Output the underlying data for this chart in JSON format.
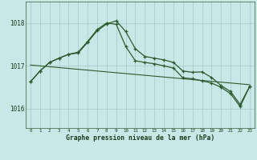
{
  "title": "Graphe pression niveau de la mer (hPa)",
  "bg_color": "#c8e8e8",
  "grid_color": "#a8cccc",
  "line_color": "#2d5a2d",
  "ylim": [
    1015.55,
    1018.5
  ],
  "yticks": [
    1016,
    1017,
    1018
  ],
  "line1": [
    1016.63,
    1016.88,
    1017.08,
    1017.18,
    1017.27,
    1017.3,
    1017.55,
    1017.82,
    1017.98,
    1018.05,
    1017.8,
    1017.4,
    1017.22,
    1017.18,
    1017.14,
    1017.08,
    1016.88,
    1016.85,
    1016.86,
    1016.73,
    1016.54,
    1016.4,
    1016.1,
    1016.52
  ],
  "line2": [
    1016.63,
    1016.88,
    1017.08,
    1017.18,
    1017.27,
    1017.32,
    1017.57,
    1017.85,
    1018.0,
    1017.97,
    1017.45,
    1017.12,
    1017.08,
    1017.05,
    1017.0,
    1016.95,
    1016.72,
    1016.7,
    1016.65,
    1016.6,
    1016.5,
    1016.35,
    1016.05,
    1016.52
  ],
  "line3": [
    1017.02,
    1017.0,
    1016.98,
    1016.96,
    1016.94,
    1016.92,
    1016.9,
    1016.88,
    1016.86,
    1016.84,
    1016.82,
    1016.8,
    1016.78,
    1016.76,
    1016.74,
    1016.72,
    1016.7,
    1016.68,
    1016.66,
    1016.64,
    1016.62,
    1016.6,
    1016.58,
    1016.56
  ],
  "x_labels": [
    "0",
    "1",
    "2",
    "3",
    "4",
    "5",
    "6",
    "7",
    "8",
    "9",
    "10",
    "11",
    "12",
    "13",
    "14",
    "15",
    "16",
    "17",
    "18",
    "19",
    "20",
    "21",
    "22",
    "23"
  ]
}
